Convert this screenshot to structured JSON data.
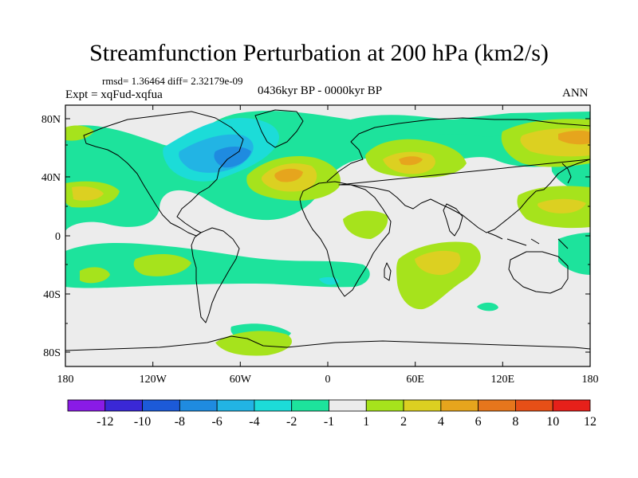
{
  "title": "Streamfunction Perturbation at 200 hPa (km2/s)",
  "stats": "rmsd= 1.36464 diff= 2.32179e-09",
  "experiment": "Expt = xqFud-xqfua",
  "period": "0436kyr BP - 0000kyr BP",
  "season": "ANN",
  "lat_labels": [
    "80N",
    "40N",
    "0",
    "40S",
    "80S"
  ],
  "lon_labels": [
    "180",
    "120W",
    "60W",
    "0",
    "60E",
    "120E",
    "180"
  ],
  "colorbar": {
    "labels": [
      "-12",
      "-10",
      "-8",
      "-6",
      "-4",
      "-2",
      "-1",
      "1",
      "2",
      "4",
      "6",
      "8",
      "10",
      "12"
    ],
    "colors": [
      "#8a1be6",
      "#3a28d6",
      "#1c5ad8",
      "#1f8be0",
      "#22b4e4",
      "#1cdcd8",
      "#1de39c",
      "#ececec",
      "#a6e31c",
      "#dcd021",
      "#e6a51d",
      "#e6761c",
      "#e64f17",
      "#e6201a"
    ]
  },
  "field_colors": {
    "background": "#ececec",
    "neg1": "#1de39c",
    "neg2": "#1cdcd8",
    "neg3": "#22b4e4",
    "neg4": "#1f8be0",
    "pos1": "#a6e31c",
    "pos2": "#dcd021",
    "pos3": "#e6a51d"
  }
}
